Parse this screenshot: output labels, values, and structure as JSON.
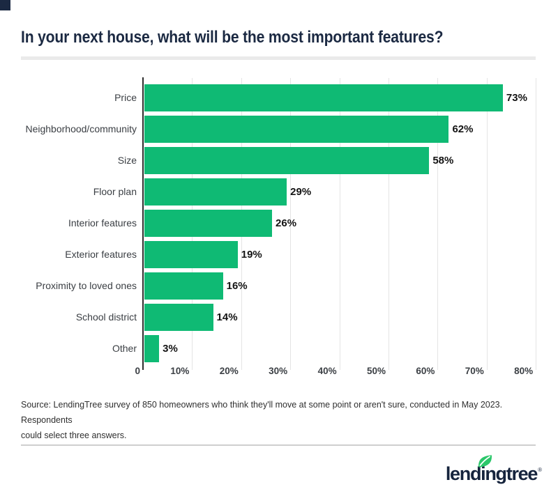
{
  "header": {
    "title": "In your next house, what will be the most important features?"
  },
  "chart_data": {
    "type": "bar",
    "orientation": "horizontal",
    "title": "In your next house, what will be the most important features?",
    "categories": [
      "Price",
      "Neighborhood/community",
      "Size",
      "Floor plan",
      "Interior features",
      "Exterior features",
      "Proximity to loved ones",
      "School district",
      "Other"
    ],
    "values": [
      73,
      62,
      58,
      29,
      26,
      19,
      16,
      14,
      3
    ],
    "value_labels": [
      "73%",
      "62%",
      "58%",
      "29%",
      "26%",
      "19%",
      "16%",
      "14%",
      "3%"
    ],
    "x_ticks": [
      "0",
      "10%",
      "20%",
      "30%",
      "40%",
      "50%",
      "60%",
      "70%",
      "80%"
    ],
    "xlim": [
      0,
      80
    ],
    "xlabel": "",
    "ylabel": "",
    "grid": true,
    "legend": "none",
    "bar_color": "#0fba74"
  },
  "source": {
    "line1": "Source: LendingTree survey of 850 homeowners who think they'll move at some point or aren't sure, conducted in May 2023. Respondents",
    "line2": "could select three answers."
  },
  "footer": {
    "logo_text": "lendingtree",
    "trademark": "®"
  },
  "colors": {
    "bar_green": "#0fba74",
    "leaf_green": "#2bc76a",
    "navy": "#1b2942",
    "gridline": "#e4e4e4",
    "axis": "#2d2d2d"
  }
}
